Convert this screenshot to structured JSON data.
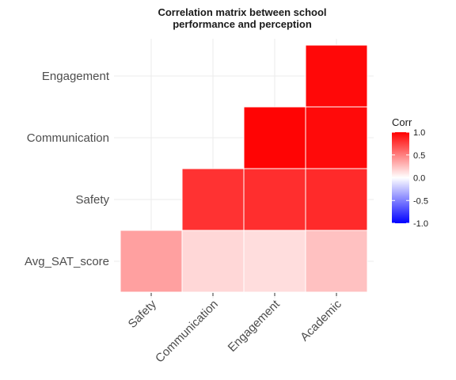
{
  "chart_data": {
    "type": "heatmap",
    "title": [
      "Correlation matrix between school",
      "performance and perception"
    ],
    "x_categories": [
      "Safety",
      "Communication",
      "Engagement",
      "Academic"
    ],
    "y_categories": [
      "Avg_SAT_score",
      "Safety",
      "Communication",
      "Engagement"
    ],
    "cells": [
      {
        "x": "Safety",
        "y": "Avg_SAT_score",
        "value": 0.29
      },
      {
        "x": "Communication",
        "y": "Avg_SAT_score",
        "value": 0.1
      },
      {
        "x": "Engagement",
        "y": "Avg_SAT_score",
        "value": 0.08
      },
      {
        "x": "Academic",
        "y": "Avg_SAT_score",
        "value": 0.17
      },
      {
        "x": "Communication",
        "y": "Safety",
        "value": 0.76
      },
      {
        "x": "Engagement",
        "y": "Safety",
        "value": 0.78
      },
      {
        "x": "Academic",
        "y": "Safety",
        "value": 0.8
      },
      {
        "x": "Engagement",
        "y": "Communication",
        "value": 0.98
      },
      {
        "x": "Academic",
        "y": "Communication",
        "value": 0.95
      },
      {
        "x": "Academic",
        "y": "Engagement",
        "value": 0.96
      }
    ],
    "legend": {
      "title": "Corr",
      "ticks": [
        1.0,
        0.5,
        0.0,
        -0.5,
        -1.0
      ],
      "tick_labels": [
        "1.0",
        "0.5",
        "0.0",
        "-0.5",
        "-1.0"
      ],
      "range": [
        -1,
        1
      ],
      "colors": {
        "low": "#0000ff",
        "mid": "#ffffff",
        "high": "#ff0000"
      },
      "position": "right"
    },
    "grid": true
  }
}
